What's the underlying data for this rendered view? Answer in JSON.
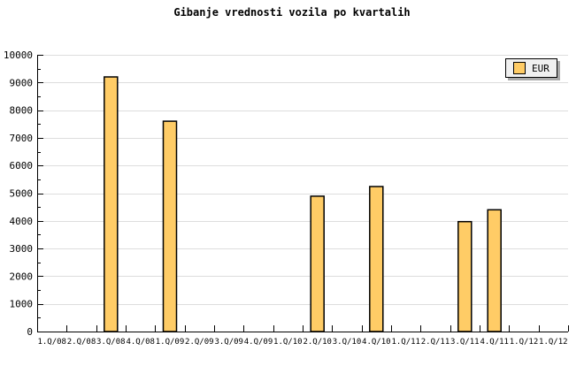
{
  "chart": {
    "title": "Gibanje vrednosti vozila po kvartalih",
    "legend": {
      "label": "EUR",
      "position": "top-right"
    },
    "colors": {
      "background": "#FFFFFF",
      "bar_fill": "#FFCC66",
      "bar_border": "#000000",
      "gridline": "#DDDDDD",
      "axis": "#000000",
      "text": "#000000",
      "legend_bg": "#F0F0F0",
      "legend_shadow": "#AAAAAA"
    }
  },
  "chart_data": {
    "type": "bar",
    "title": "Gibanje vrednosti vozila po kvartalih",
    "xlabel": "",
    "ylabel": "",
    "categories": [
      "1.Q/08",
      "2.Q/08",
      "3.Q/08",
      "4.Q/08",
      "1.Q/09",
      "2.Q/09",
      "3.Q/09",
      "4.Q/09",
      "1.Q/10",
      "2.Q/10",
      "3.Q/10",
      "4.Q/10",
      "1.Q/11",
      "2.Q/11",
      "3.Q/11",
      "4.Q/11",
      "1.Q/12",
      "1.Q/12"
    ],
    "series": [
      {
        "name": "EUR",
        "values": [
          null,
          null,
          9200,
          null,
          7600,
          null,
          null,
          null,
          null,
          4890,
          null,
          5240,
          null,
          null,
          3970,
          4400,
          null,
          null
        ]
      }
    ],
    "ylim": [
      0,
      10000
    ],
    "yticks": [
      0,
      1000,
      2000,
      3000,
      4000,
      5000,
      6000,
      7000,
      8000,
      9000,
      10000
    ],
    "ytick_minor_step": 500,
    "grid": "horizontal",
    "legend_position": "top-right"
  }
}
